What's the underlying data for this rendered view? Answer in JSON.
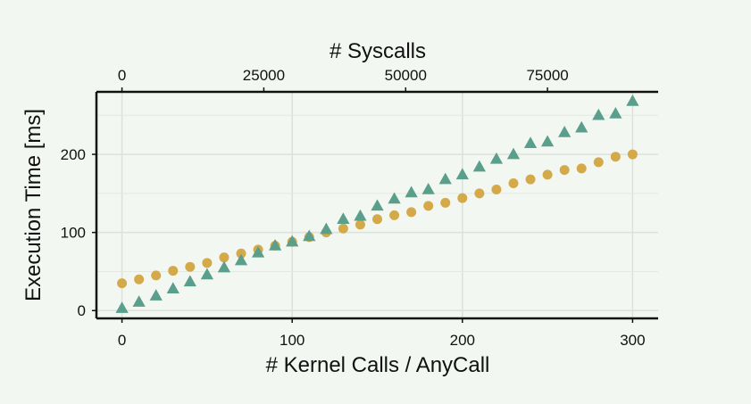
{
  "chart_data": {
    "type": "scatter",
    "xlabel": "# Kernel Calls / AnyCall",
    "ylabel": "Execution Time [ms]",
    "x2label": "# Syscalls",
    "xlim": [
      -15,
      315
    ],
    "ylim": [
      -10,
      280
    ],
    "x2lim": [
      -4500,
      94500
    ],
    "xticks": [
      0,
      100,
      200,
      300
    ],
    "yticks": [
      0,
      100,
      200
    ],
    "x2ticks": [
      0,
      25000,
      50000,
      75000
    ],
    "grid": true,
    "series": [
      {
        "marker": "circle",
        "color": "#d4a94a",
        "x": [
          0,
          10,
          20,
          30,
          40,
          50,
          60,
          70,
          80,
          90,
          100,
          110,
          120,
          130,
          140,
          150,
          160,
          170,
          180,
          190,
          200,
          210,
          220,
          230,
          240,
          250,
          260,
          270,
          280,
          290,
          300
        ],
        "y": [
          35,
          40,
          45,
          51,
          56,
          61,
          68,
          73,
          78,
          83,
          88,
          94,
          100,
          105,
          110,
          117,
          122,
          126,
          134,
          138,
          144,
          150,
          155,
          163,
          168,
          174,
          180,
          182,
          190,
          197,
          200
        ]
      },
      {
        "marker": "triangle",
        "color": "#5a9e8c",
        "x": [
          0,
          10,
          20,
          30,
          40,
          50,
          60,
          70,
          80,
          90,
          100,
          110,
          120,
          130,
          140,
          150,
          160,
          170,
          180,
          190,
          200,
          210,
          220,
          230,
          240,
          250,
          260,
          270,
          280,
          290,
          300
        ],
        "y": [
          3,
          11,
          19,
          28,
          37,
          46,
          55,
          64,
          74,
          83,
          88,
          95,
          104,
          117,
          121,
          134,
          143,
          151,
          155,
          168,
          174,
          184,
          194,
          200,
          214,
          216,
          228,
          234,
          250,
          252,
          268
        ]
      }
    ]
  }
}
